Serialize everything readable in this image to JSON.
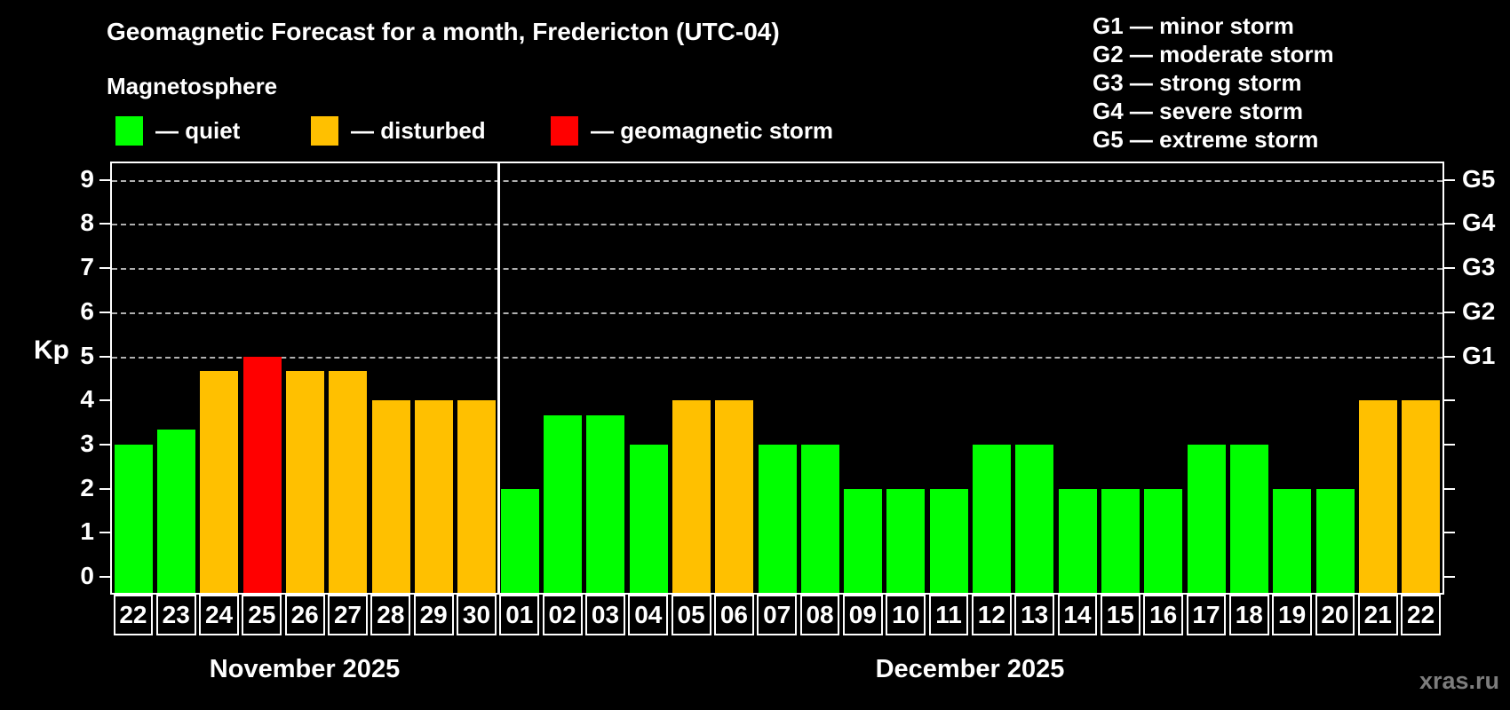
{
  "title": "Geomagnetic Forecast for a month, Fredericton (UTC-04)",
  "subtitle": "Magnetosphere",
  "legend": {
    "items": [
      {
        "name": "quiet",
        "label": "— quiet",
        "color": "#00ff00"
      },
      {
        "name": "disturbed",
        "label": "— disturbed",
        "color": "#ffc000"
      },
      {
        "name": "storm",
        "label": "— geomagnetic storm",
        "color": "#ff0000"
      }
    ]
  },
  "g_legend": {
    "items": [
      {
        "label": "G1 — minor storm"
      },
      {
        "label": "G2 — moderate storm"
      },
      {
        "label": "G3 — strong storm"
      },
      {
        "label": "G4 — severe storm"
      },
      {
        "label": "G5 — extreme storm"
      }
    ]
  },
  "watermark": "xras.ru",
  "chart_data": {
    "type": "bar",
    "title": "Geomagnetic Forecast for a month, Fredericton (UTC-04)",
    "ylabel": "Kp",
    "ylim": [
      0,
      9
    ],
    "yticks": [
      0,
      1,
      2,
      3,
      4,
      5,
      6,
      7,
      8,
      9
    ],
    "grid": "dashed horizontal lines at Kp 5-9",
    "gridlines_kp": [
      5,
      6,
      7,
      8,
      9
    ],
    "right_axis": {
      "labels": [
        "G1",
        "G2",
        "G3",
        "G4",
        "G5"
      ],
      "kp_positions": [
        5,
        6,
        7,
        8,
        9
      ]
    },
    "status_colors": {
      "quiet": "#00ff00",
      "disturbed": "#ffc000",
      "storm": "#ff0000"
    },
    "groups": [
      {
        "month": "November 2025",
        "days": [
          {
            "day": "22",
            "kp": 3.0,
            "status": "quiet"
          },
          {
            "day": "23",
            "kp": 3.33,
            "status": "quiet"
          },
          {
            "day": "24",
            "kp": 4.67,
            "status": "disturbed"
          },
          {
            "day": "25",
            "kp": 5.0,
            "status": "storm"
          },
          {
            "day": "26",
            "kp": 4.67,
            "status": "disturbed"
          },
          {
            "day": "27",
            "kp": 4.67,
            "status": "disturbed"
          },
          {
            "day": "28",
            "kp": 4.0,
            "status": "disturbed"
          },
          {
            "day": "29",
            "kp": 4.0,
            "status": "disturbed"
          },
          {
            "day": "30",
            "kp": 4.0,
            "status": "disturbed"
          }
        ]
      },
      {
        "month": "December 2025",
        "days": [
          {
            "day": "01",
            "kp": 2.0,
            "status": "quiet"
          },
          {
            "day": "02",
            "kp": 3.67,
            "status": "quiet"
          },
          {
            "day": "03",
            "kp": 3.67,
            "status": "quiet"
          },
          {
            "day": "04",
            "kp": 3.0,
            "status": "quiet"
          },
          {
            "day": "05",
            "kp": 4.0,
            "status": "disturbed"
          },
          {
            "day": "06",
            "kp": 4.0,
            "status": "disturbed"
          },
          {
            "day": "07",
            "kp": 3.0,
            "status": "quiet"
          },
          {
            "day": "08",
            "kp": 3.0,
            "status": "quiet"
          },
          {
            "day": "09",
            "kp": 2.0,
            "status": "quiet"
          },
          {
            "day": "10",
            "kp": 2.0,
            "status": "quiet"
          },
          {
            "day": "11",
            "kp": 2.0,
            "status": "quiet"
          },
          {
            "day": "12",
            "kp": 3.0,
            "status": "quiet"
          },
          {
            "day": "13",
            "kp": 3.0,
            "status": "quiet"
          },
          {
            "day": "14",
            "kp": 2.0,
            "status": "quiet"
          },
          {
            "day": "15",
            "kp": 2.0,
            "status": "quiet"
          },
          {
            "day": "16",
            "kp": 2.0,
            "status": "quiet"
          },
          {
            "day": "17",
            "kp": 3.0,
            "status": "quiet"
          },
          {
            "day": "18",
            "kp": 3.0,
            "status": "quiet"
          },
          {
            "day": "19",
            "kp": 2.0,
            "status": "quiet"
          },
          {
            "day": "20",
            "kp": 2.0,
            "status": "quiet"
          },
          {
            "day": "21",
            "kp": 4.0,
            "status": "disturbed"
          },
          {
            "day": "22",
            "kp": 4.0,
            "status": "disturbed"
          }
        ]
      }
    ]
  }
}
